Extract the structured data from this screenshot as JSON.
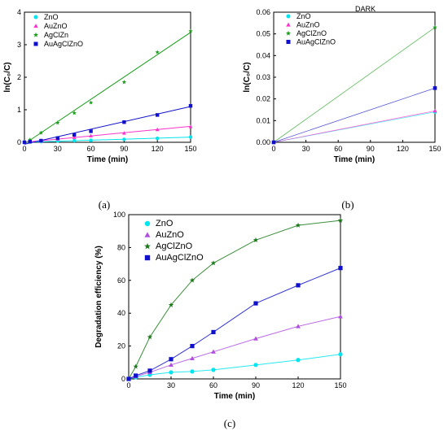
{
  "figure": {
    "panel_labels": [
      "(a)",
      "(b)",
      "(c)"
    ]
  },
  "chart_data": [
    {
      "type": "scatter",
      "panel": "(a)",
      "title": "",
      "xlabel": "Time (min)",
      "ylabel": "ln(C₀/C)",
      "xlim": [
        0,
        150
      ],
      "ylim": [
        0,
        4
      ],
      "xticks": [
        0,
        30,
        60,
        90,
        120,
        150
      ],
      "yticks": [
        0,
        1,
        2,
        3,
        4
      ],
      "legend_position": "top-left",
      "fit_lines": true,
      "series": [
        {
          "name": "ZnO",
          "color": "#00e5ee",
          "marker": "circle",
          "x": [
            0,
            5,
            15,
            30,
            45,
            60,
            90,
            120,
            150
          ],
          "y": [
            0,
            0.01,
            0.02,
            0.04,
            0.05,
            0.06,
            0.09,
            0.12,
            0.16
          ],
          "fit": [
            [
              0,
              0
            ],
            [
              150,
              0.16
            ]
          ]
        },
        {
          "name": "AuZnO",
          "color": "#ff33cc",
          "marker": "triangle",
          "x": [
            0,
            5,
            15,
            30,
            45,
            60,
            90,
            120,
            150
          ],
          "y": [
            0,
            0.02,
            0.04,
            0.1,
            0.15,
            0.2,
            0.28,
            0.39,
            0.48
          ],
          "fit": [
            [
              0,
              0
            ],
            [
              150,
              0.49
            ]
          ]
        },
        {
          "name": "AgClZn",
          "color": "#1a9e1a",
          "marker": "star",
          "x": [
            0,
            5,
            15,
            30,
            45,
            60,
            90,
            120,
            150
          ],
          "y": [
            0,
            0.08,
            0.29,
            0.6,
            0.9,
            1.22,
            1.85,
            2.77,
            3.42
          ],
          "fit": [
            [
              0,
              -0.05
            ],
            [
              150,
              3.38
            ]
          ]
        },
        {
          "name": "AuAgClZnO",
          "color": "#1010cc",
          "marker": "square",
          "x": [
            0,
            5,
            15,
            30,
            45,
            60,
            90,
            120,
            150
          ],
          "y": [
            0,
            0.02,
            0.05,
            0.13,
            0.23,
            0.34,
            0.62,
            0.84,
            1.12
          ],
          "fit": [
            [
              0,
              -0.06
            ],
            [
              150,
              1.1
            ]
          ]
        }
      ]
    },
    {
      "type": "scatter",
      "panel": "(b)",
      "title": "",
      "annotation": "DARK",
      "xlabel": "Time (min)",
      "ylabel": "ln(C₀/C)",
      "xlim": [
        0,
        150
      ],
      "ylim": [
        0,
        0.06
      ],
      "xticks": [
        0,
        30,
        60,
        90,
        120,
        150
      ],
      "yticks": [
        "0.00",
        "0.01",
        "0.02",
        "0.03",
        "0.04",
        "0.05",
        "0.06"
      ],
      "legend_position": "top-left",
      "fit_lines": true,
      "series": [
        {
          "name": "ZnO",
          "color": "#00e5ee",
          "marker": "circle",
          "x": [
            0,
            150
          ],
          "y": [
            0,
            0.014
          ],
          "fit": [
            [
              0,
              0
            ],
            [
              150,
              0.014
            ]
          ]
        },
        {
          "name": "AuZnO",
          "color": "#ff33cc",
          "marker": "triangle",
          "x": [
            0,
            150
          ],
          "y": [
            0,
            0.0145
          ],
          "fit": [
            [
              0,
              0
            ],
            [
              150,
              0.0145
            ]
          ]
        },
        {
          "name": "AgClZnO",
          "color": "#1a9e1a",
          "marker": "star",
          "x": [
            0,
            150
          ],
          "y": [
            0,
            0.053
          ],
          "fit": [
            [
              0,
              0
            ],
            [
              150,
              0.053
            ]
          ]
        },
        {
          "name": "AuAgClZnO",
          "color": "#1010cc",
          "marker": "square",
          "x": [
            0,
            150
          ],
          "y": [
            0,
            0.025
          ],
          "fit": [
            [
              0,
              0
            ],
            [
              150,
              0.025
            ]
          ]
        }
      ]
    },
    {
      "type": "line",
      "panel": "(c)",
      "title": "",
      "xlabel": "Time (min)",
      "ylabel": "Degradation efficiency (%)",
      "xlim": [
        0,
        150
      ],
      "ylim": [
        0,
        100
      ],
      "xticks": [
        0,
        30,
        60,
        90,
        120,
        150
      ],
      "yticks": [
        0,
        20,
        40,
        60,
        80,
        100
      ],
      "legend_position": "top-left",
      "series": [
        {
          "name": "ZnO",
          "color": "#00e5ee",
          "marker": "circle",
          "x": [
            0,
            5,
            15,
            30,
            45,
            60,
            90,
            120,
            150
          ],
          "y": [
            0,
            1,
            2.5,
            4,
            4.5,
            5.5,
            8.5,
            11.5,
            15
          ]
        },
        {
          "name": "AuZnO",
          "color": "#b050e0",
          "marker": "triangle",
          "x": [
            0,
            5,
            15,
            30,
            45,
            60,
            90,
            120,
            150
          ],
          "y": [
            0,
            1.5,
            4,
            8.5,
            12.5,
            16.5,
            24.5,
            32,
            38
          ]
        },
        {
          "name": "AgClZnO",
          "color": "#1a7a1a",
          "marker": "star",
          "x": [
            0,
            5,
            15,
            30,
            45,
            60,
            90,
            120,
            150
          ],
          "y": [
            0,
            7.5,
            25.5,
            45,
            60,
            70.5,
            84.5,
            93.5,
            96.5
          ]
        },
        {
          "name": "AuAgClZnO",
          "color": "#1010cc",
          "marker": "square",
          "x": [
            0,
            5,
            15,
            30,
            45,
            60,
            90,
            120,
            150
          ],
          "y": [
            0,
            2,
            5,
            12,
            20,
            28.5,
            46,
            57,
            67.5
          ]
        }
      ]
    }
  ]
}
